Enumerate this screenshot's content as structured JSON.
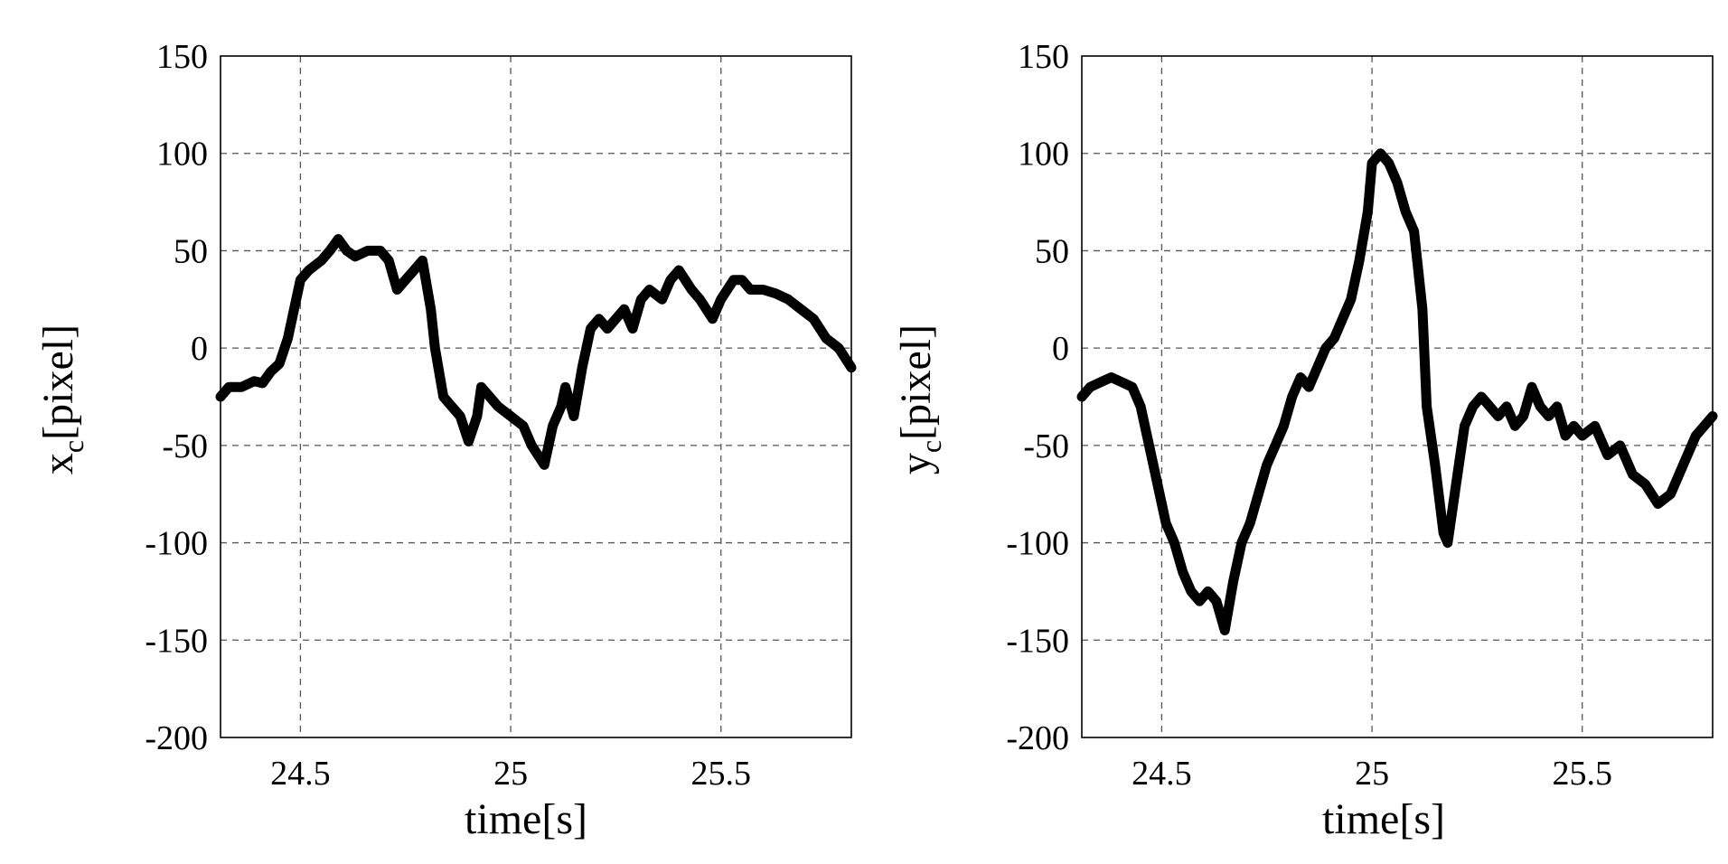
{
  "chart_data": [
    {
      "type": "line",
      "xlabel": "time[s]",
      "ylabel_main": "x",
      "ylabel_sub": "c",
      "ylabel_unit": "[pixel]",
      "xlim": [
        24.31,
        25.81
      ],
      "ylim": [
        -200,
        150
      ],
      "xticks": [
        24.5,
        25,
        25.5
      ],
      "xtick_labels": [
        "24.5",
        "25",
        "25.5"
      ],
      "yticks": [
        150,
        100,
        50,
        0,
        -50,
        -100,
        -150,
        -200
      ],
      "ytick_labels": [
        "150",
        "100",
        "50",
        "0",
        "-50",
        "-100",
        "-150",
        "-200"
      ],
      "grid": true,
      "series": [
        {
          "color": "#000000",
          "x": [
            24.31,
            24.33,
            24.36,
            24.39,
            24.41,
            24.43,
            24.45,
            24.47,
            24.48,
            24.5,
            24.52,
            24.55,
            24.57,
            24.59,
            24.61,
            24.63,
            24.66,
            24.69,
            24.71,
            24.73,
            24.75,
            24.77,
            24.79,
            24.81,
            24.82,
            24.84,
            24.86,
            24.88,
            24.9,
            24.92,
            24.93,
            24.95,
            24.97,
            25.0,
            25.03,
            25.05,
            25.08,
            25.1,
            25.12,
            25.13,
            25.15,
            25.17,
            25.19,
            25.21,
            25.23,
            25.25,
            25.27,
            25.29,
            25.31,
            25.33,
            25.36,
            25.38,
            25.4,
            25.43,
            25.45,
            25.48,
            25.5,
            25.53,
            25.55,
            25.57,
            25.6,
            25.63,
            25.66,
            25.69,
            25.72,
            25.75,
            25.78,
            25.81
          ],
          "y": [
            -25,
            -20,
            -20,
            -17,
            -18,
            -12,
            -8,
            5,
            15,
            35,
            40,
            45,
            50,
            56,
            50,
            47,
            50,
            50,
            45,
            30,
            35,
            40,
            45,
            20,
            0,
            -25,
            -30,
            -35,
            -48,
            -35,
            -20,
            -25,
            -30,
            -35,
            -40,
            -50,
            -60,
            -40,
            -30,
            -20,
            -35,
            -10,
            10,
            15,
            10,
            15,
            20,
            10,
            25,
            30,
            25,
            35,
            40,
            30,
            25,
            15,
            25,
            35,
            35,
            30,
            30,
            28,
            25,
            20,
            15,
            5,
            0,
            -10
          ]
        }
      ]
    },
    {
      "type": "line",
      "xlabel": "time[s]",
      "ylabel_main": "y",
      "ylabel_sub": "c",
      "ylabel_unit": "[pixel]",
      "xlim": [
        24.31,
        25.81
      ],
      "ylim": [
        -200,
        150
      ],
      "xticks": [
        24.5,
        25,
        25.5
      ],
      "xtick_labels": [
        "24.5",
        "25",
        "25.5"
      ],
      "yticks": [
        150,
        100,
        50,
        0,
        -50,
        -100,
        -150,
        -200
      ],
      "ytick_labels": [
        "150",
        "100",
        "50",
        "0",
        "-50",
        "-100",
        "-150",
        "-200"
      ],
      "grid": true,
      "series": [
        {
          "color": "#000000",
          "x": [
            24.31,
            24.33,
            24.35,
            24.38,
            24.41,
            24.43,
            24.45,
            24.47,
            24.49,
            24.51,
            24.53,
            24.55,
            24.57,
            24.59,
            24.61,
            24.63,
            24.65,
            24.67,
            24.69,
            24.71,
            24.73,
            24.75,
            24.77,
            24.79,
            24.81,
            24.83,
            24.85,
            24.87,
            24.89,
            24.91,
            24.93,
            24.95,
            24.97,
            24.99,
            25.0,
            25.02,
            25.04,
            25.06,
            25.08,
            25.1,
            25.12,
            25.13,
            25.15,
            25.17,
            25.18,
            25.2,
            25.22,
            25.24,
            25.26,
            25.28,
            25.3,
            25.32,
            25.34,
            25.36,
            25.38,
            25.4,
            25.42,
            25.44,
            25.46,
            25.48,
            25.5,
            25.53,
            25.56,
            25.59,
            25.62,
            25.65,
            25.68,
            25.71,
            25.74,
            25.77,
            25.79,
            25.81
          ],
          "y": [
            -25,
            -20,
            -18,
            -15,
            -18,
            -20,
            -30,
            -50,
            -70,
            -90,
            -100,
            -115,
            -125,
            -130,
            -125,
            -130,
            -145,
            -120,
            -100,
            -90,
            -75,
            -60,
            -50,
            -40,
            -25,
            -15,
            -20,
            -10,
            0,
            5,
            15,
            25,
            45,
            70,
            95,
            100,
            95,
            85,
            70,
            60,
            20,
            -30,
            -60,
            -95,
            -100,
            -70,
            -40,
            -30,
            -25,
            -30,
            -35,
            -30,
            -40,
            -35,
            -20,
            -30,
            -35,
            -30,
            -45,
            -40,
            -45,
            -40,
            -55,
            -50,
            -65,
            -70,
            -80,
            -75,
            -60,
            -45,
            -40,
            -35
          ]
        }
      ]
    }
  ]
}
